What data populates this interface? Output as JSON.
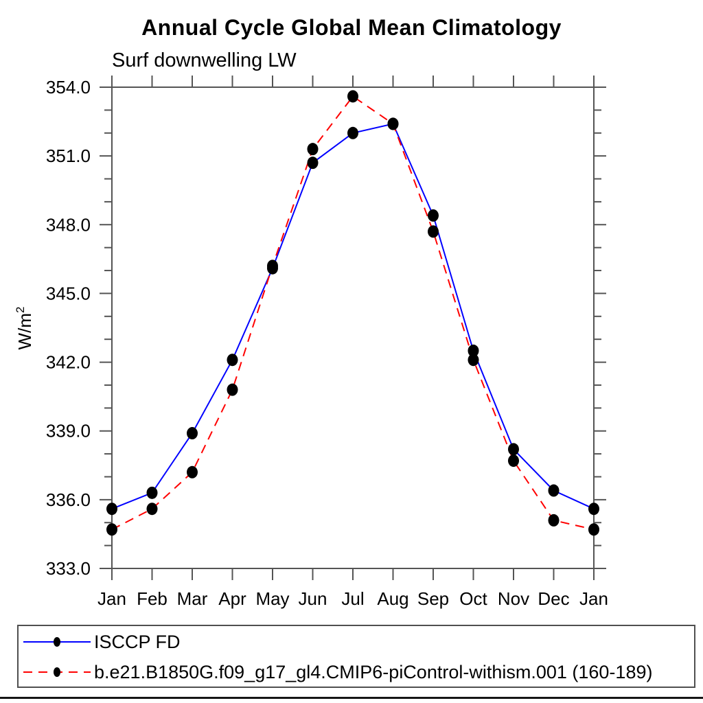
{
  "chart_data": {
    "type": "line",
    "title": "Annual Cycle Global Mean Climatology",
    "subtitle": "Surf downwelling LW",
    "ylabel_base": "W/m",
    "ylabel_exponent": "2",
    "categories": [
      "Jan",
      "Feb",
      "Mar",
      "Apr",
      "May",
      "Jun",
      "Jul",
      "Aug",
      "Sep",
      "Oct",
      "Nov",
      "Dec",
      "Jan"
    ],
    "ylim": [
      333.0,
      354.0
    ],
    "ytick_major_interval": 3.0,
    "ytick_minor_interval": 1.0,
    "ytick_labels": [
      "333.0",
      "336.0",
      "339.0",
      "342.0",
      "345.0",
      "348.0",
      "351.0",
      "354.0"
    ],
    "grid": false,
    "legend_position": "bottom-left-box",
    "series": [
      {
        "name": "ISCCP FD",
        "color": "#0000ff",
        "line_style": "solid",
        "marker": "filled-circle",
        "marker_color": "#000000",
        "values": [
          335.6,
          336.3,
          338.9,
          342.1,
          346.1,
          350.7,
          352.0,
          352.4,
          348.4,
          342.5,
          338.2,
          336.4,
          335.6
        ]
      },
      {
        "name": "b.e21.B1850G.f09_g17_gl4.CMIP6-piControl-withism.001 (160-189)",
        "color": "#ff0000",
        "line_style": "dashed",
        "marker": "filled-circle",
        "marker_color": "#000000",
        "values": [
          334.7,
          335.6,
          337.2,
          340.8,
          346.2,
          351.3,
          353.6,
          352.4,
          347.7,
          342.1,
          337.7,
          335.1,
          334.7
        ]
      }
    ]
  },
  "colors": {
    "axis": "#545454",
    "text": "#000000",
    "series_blue": "#0000ff",
    "series_red": "#ff0000",
    "marker_black": "#000000"
  }
}
